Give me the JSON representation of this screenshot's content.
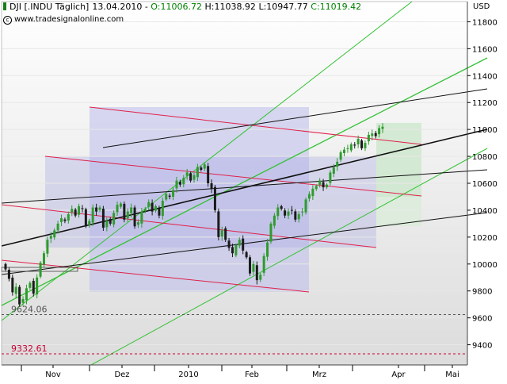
{
  "header": {
    "symbol": "DJI [.INDU",
    "period": "Täglich]",
    "date": "13.04.2010",
    "open": "O:11006.72",
    "high": "H:11038.92",
    "low": "L:10947.77",
    "close": "C:11019.42",
    "copyright": "www.tradesignalonline.com",
    "currency": "USD"
  },
  "colors": {
    "up_candle": "#2e9b2e",
    "down_candle": "#1a1a1a",
    "green_channel": "#33c233",
    "red_channel": "#e0204a",
    "black_channel": "#111111",
    "support_label": "#555555",
    "resistance_label": "#cc0033"
  },
  "chart_data": {
    "type": "candlestick",
    "x": [
      "Nov",
      "Dez",
      "2010",
      "Feb",
      "Mrz",
      "Apr",
      "Mai"
    ],
    "ylim": [
      9250,
      11950
    ],
    "yticks": [
      9400,
      9600,
      9800,
      10000,
      10200,
      10400,
      10600,
      10800,
      11000,
      11200,
      11400,
      11600,
      11800
    ],
    "grid": true,
    "horizontal_levels": [
      {
        "value": 9624.06,
        "label": "9624.06",
        "style": "dashed",
        "color": "#555555"
      },
      {
        "value": 9332.61,
        "label": "9332.61",
        "style": "dashed",
        "color": "#cc0033"
      }
    ],
    "series": [
      {
        "closes": [
          9960,
          9890,
          9790,
          9830,
          9700,
          9740,
          9820,
          9860,
          9780,
          9900,
          10010,
          10080,
          10180,
          10210,
          10250,
          10300,
          10340,
          10320,
          10370,
          10410,
          10360,
          10430,
          10410,
          10280,
          10320,
          10420,
          10390,
          10420,
          10270,
          10320,
          10300,
          10380,
          10440,
          10450,
          10330,
          10390,
          10420,
          10280,
          10310,
          10390,
          10410,
          10460,
          10390,
          10430,
          10360,
          10470,
          10520,
          10500,
          10550,
          10620,
          10590,
          10640,
          10680,
          10620,
          10660,
          10720,
          10700,
          10740,
          10600,
          10560,
          10400,
          10200,
          10250,
          10180,
          10120,
          10080,
          10140,
          10180,
          10100,
          10050,
          9930,
          10000,
          9880,
          9920,
          10060,
          10160,
          10300,
          10360,
          10420,
          10410,
          10360,
          10390,
          10400,
          10330,
          10370,
          10390,
          10480,
          10520,
          10560,
          10580,
          10620,
          10570,
          10590,
          10680,
          10720,
          10760,
          10830,
          10850,
          10860,
          10890,
          10880,
          10930,
          10860,
          10900,
          10960,
          10970,
          10950,
          11010,
          11020
        ]
      }
    ]
  }
}
